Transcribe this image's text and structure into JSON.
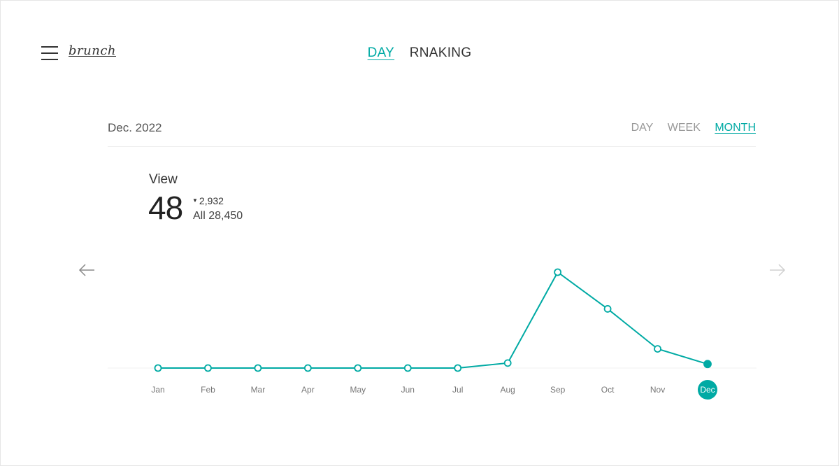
{
  "header": {
    "menu_icon": "hamburger-menu-icon",
    "logo": "brunch",
    "tabs": [
      {
        "label": "DAY",
        "active": true
      },
      {
        "label": "RNAKING",
        "active": false
      }
    ]
  },
  "period": {
    "title": "Dec. 2022",
    "options": [
      {
        "label": "DAY",
        "active": false
      },
      {
        "label": "WEEK",
        "active": false
      },
      {
        "label": "MONTH",
        "active": true
      }
    ]
  },
  "stats": {
    "label": "View",
    "value": "48",
    "change": "2,932",
    "change_direction": "down",
    "total": "All 28,450"
  },
  "nav_icons": {
    "prev": "arrow-left-icon",
    "next": "arrow-right-icon"
  },
  "colors": {
    "accent": "#00aaa4",
    "text": "#333333",
    "muted": "#999999"
  },
  "chart_data": {
    "type": "line",
    "categories": [
      "Jan",
      "Feb",
      "Mar",
      "Apr",
      "May",
      "Jun",
      "Jul",
      "Aug",
      "Sep",
      "Oct",
      "Nov",
      "Dec"
    ],
    "series": [
      {
        "values": [
          0,
          0,
          0,
          0,
          0,
          0,
          0,
          60,
          1150,
          710,
          230,
          48
        ]
      }
    ],
    "selected_category": "Dec",
    "ylim": [
      0,
      1150
    ],
    "grid": false
  }
}
